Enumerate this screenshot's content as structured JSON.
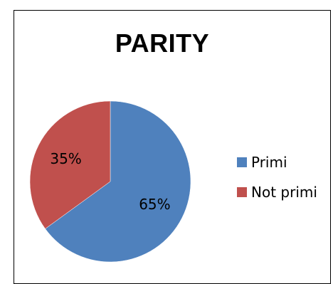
{
  "chart_data": {
    "type": "pie",
    "title": "PARITY",
    "slices": [
      {
        "name": "Primi",
        "value": 65,
        "label": "65%",
        "color": "#4F81BD"
      },
      {
        "name": "Not primi",
        "value": 35,
        "label": "35%",
        "color": "#C0504D"
      }
    ],
    "legend_position": "right"
  }
}
